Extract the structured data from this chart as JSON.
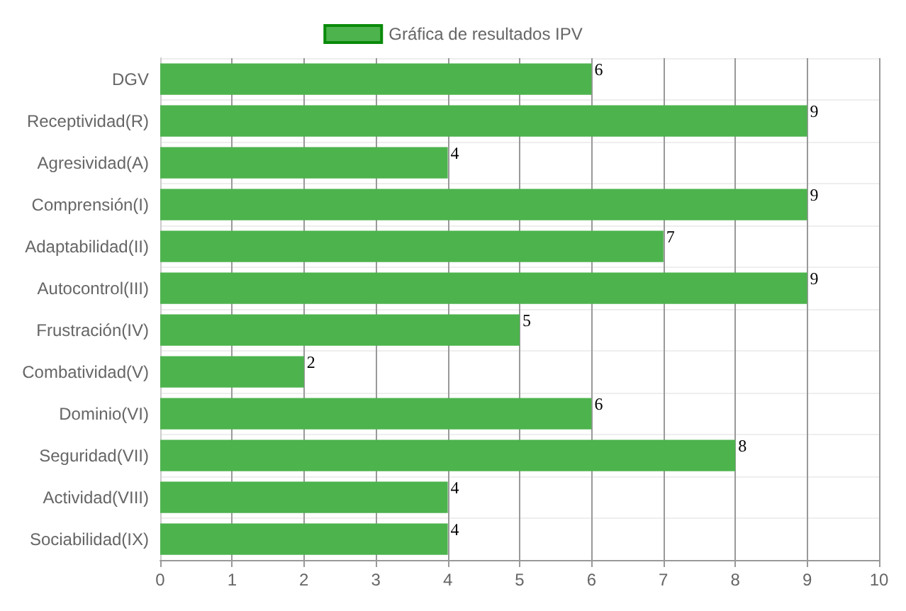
{
  "chart_data": {
    "type": "bar",
    "orientation": "horizontal",
    "categories": [
      "DGV",
      "Receptividad(R)",
      "Agresividad(A)",
      "Comprensión(I)",
      "Adaptabilidad(II)",
      "Autocontrol(III)",
      "Frustración(IV)",
      "Combatividad(V)",
      "Dominio(VI)",
      "Seguridad(VII)",
      "Actividad(VIII)",
      "Sociabilidad(IX)"
    ],
    "series": [
      {
        "name": "Gráfica de resultados IPV",
        "color": "#4db34d",
        "values": [
          6,
          9,
          4,
          9,
          7,
          9,
          5,
          2,
          6,
          8,
          4,
          4
        ]
      }
    ],
    "xlim": [
      0,
      10
    ],
    "xticks": [
      0,
      1,
      2,
      3,
      4,
      5,
      6,
      7,
      8,
      9,
      10
    ],
    "grid": true,
    "legend": "top",
    "data_labels": true
  }
}
